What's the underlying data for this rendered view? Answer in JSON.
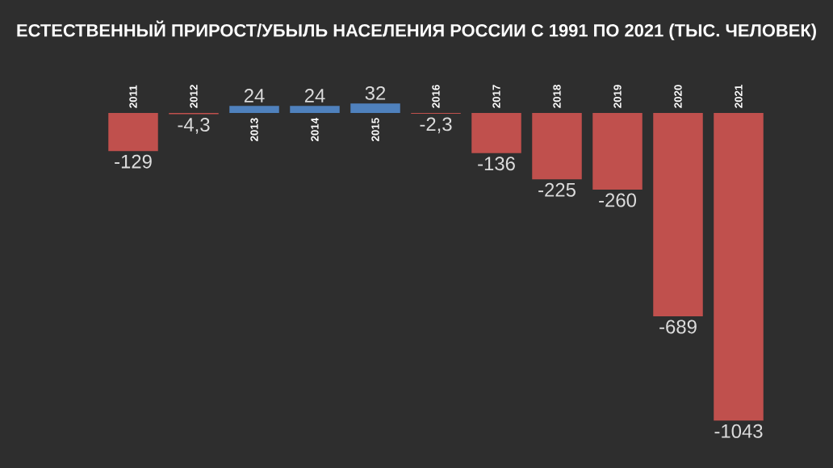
{
  "chart_data": {
    "type": "bar",
    "title": "ЕСТЕСТВЕННЫЙ ПРИРОСТ/УБЫЛЬ НАСЕЛЕНИЯ РОССИИ С 1991 ПО 2021 (ТЫС. ЧЕЛОВЕК)",
    "categories": [
      "2011",
      "2012",
      "2013",
      "2014",
      "2015",
      "2016",
      "2017",
      "2018",
      "2019",
      "2020",
      "2021"
    ],
    "values": [
      -129,
      -4.3,
      24,
      24,
      32,
      -2.3,
      -136,
      -225,
      -260,
      -689,
      -1043
    ],
    "colors": [
      "#c0504d",
      "#c0504d",
      "#4f81bd",
      "#4f81bd",
      "#4f81bd",
      "#c0504d",
      "#c0504d",
      "#c0504d",
      "#c0504d",
      "#c0504d",
      "#c0504d"
    ],
    "value_labels": [
      "-129",
      "-4,3",
      "24",
      "24",
      "32",
      "-2,3",
      "-136",
      "-225",
      "-260",
      "-689",
      "-1043"
    ]
  }
}
